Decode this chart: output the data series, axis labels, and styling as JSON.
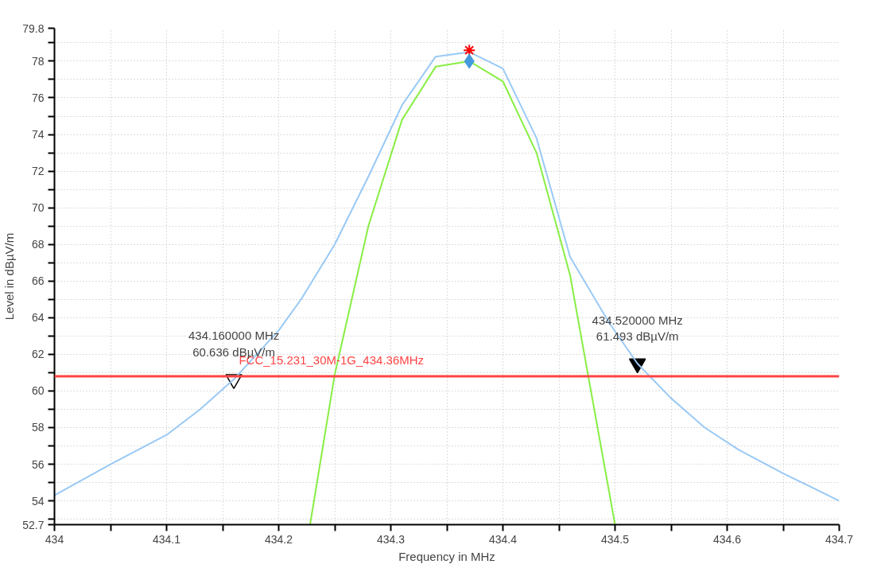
{
  "chart_data": {
    "type": "line",
    "xlabel": "Frequency in MHz",
    "ylabel": "Level in dBµV/m",
    "xlim": [
      434,
      434.7
    ],
    "xticks": [
      434,
      {
        "value": 434.05,
        "label": null
      },
      434.1,
      {
        "value": 434.15,
        "label": null
      },
      434.2,
      {
        "value": 434.25,
        "label": null
      },
      434.3,
      {
        "value": 434.35,
        "label": null
      },
      434.4,
      {
        "value": 434.45,
        "label": null
      },
      434.5,
      {
        "value": 434.55,
        "label": null
      },
      434.6,
      {
        "value": 434.65,
        "label": null
      },
      434.7
    ],
    "ylim": [
      52.7,
      79.8
    ],
    "yticks": [
      52.7,
      {
        "value": 53,
        "label": null
      },
      54,
      {
        "value": 55,
        "label": null
      },
      56,
      {
        "value": 57,
        "label": null
      },
      58,
      {
        "value": 59,
        "label": null
      },
      60,
      {
        "value": 61,
        "label": null
      },
      62,
      {
        "value": 63,
        "label": null
      },
      64,
      {
        "value": 65,
        "label": null
      },
      66,
      {
        "value": 67,
        "label": null
      },
      68,
      {
        "value": 69,
        "label": null
      },
      70,
      {
        "value": 71,
        "label": null
      },
      72,
      {
        "value": 73,
        "label": null
      },
      74,
      {
        "value": 75,
        "label": null
      },
      76,
      {
        "value": 77,
        "label": null
      },
      78,
      {
        "value": 79,
        "label": null
      },
      79.8
    ],
    "grid": true,
    "series": [
      {
        "color": "#99c9f5",
        "x": [
          434,
          434.05,
          434.1,
          434.13,
          434.16,
          434.2,
          434.22,
          434.25,
          434.28,
          434.31,
          434.34,
          434.37,
          434.4,
          434.43,
          434.46,
          434.495,
          434.52,
          434.55,
          434.58,
          434.61,
          434.65,
          434.7
        ],
        "values": [
          54.3,
          56.0,
          57.6,
          59.0,
          60.636,
          63.3,
          65.0,
          68.0,
          71.7,
          75.6,
          78.25,
          78.5,
          77.6,
          73.8,
          67.3,
          63.7,
          61.493,
          59.6,
          58.0,
          56.8,
          55.5,
          54.0
        ]
      },
      {
        "color": "#88ee44",
        "x": [
          434.228,
          434.25,
          434.28,
          434.31,
          434.34,
          434.37,
          434.4,
          434.43,
          434.46,
          434.5
        ],
        "values": [
          52.7,
          60.9,
          69.0,
          74.8,
          77.7,
          78.0,
          76.9,
          73.0,
          66.3,
          52.7
        ]
      },
      {
        "type": "scatter",
        "marker": "cross",
        "color": "#ff0000",
        "x": [
          434.37
        ],
        "values": [
          78.6
        ]
      },
      {
        "type": "scatter",
        "marker": "diamond",
        "color": "#4499dd",
        "x": [
          434.37
        ],
        "values": [
          78.0
        ]
      },
      {
        "type": "scatter",
        "marker": "triangle",
        "color": "#ffffff",
        "x": [
          434.16
        ],
        "values": [
          60.636
        ]
      },
      {
        "type": "scatter",
        "marker": "triangle",
        "color": "#000000",
        "x": [
          434.52
        ],
        "values": [
          61.493
        ]
      }
    ],
    "ref_lines": [
      {
        "axis": "y",
        "value": 60.8,
        "label": "FCC_15.231_30M-1G_434.36MHz",
        "color": "#ff4444"
      }
    ],
    "annotations": [
      {
        "text": "434.160000 MHz\n60.636 dBµV/m",
        "x": 434.16,
        "y": 60.636
      },
      {
        "text": "434.520000 MHz\n61.493 dBµV/m",
        "x": 434.52,
        "y": 61.493
      }
    ]
  }
}
